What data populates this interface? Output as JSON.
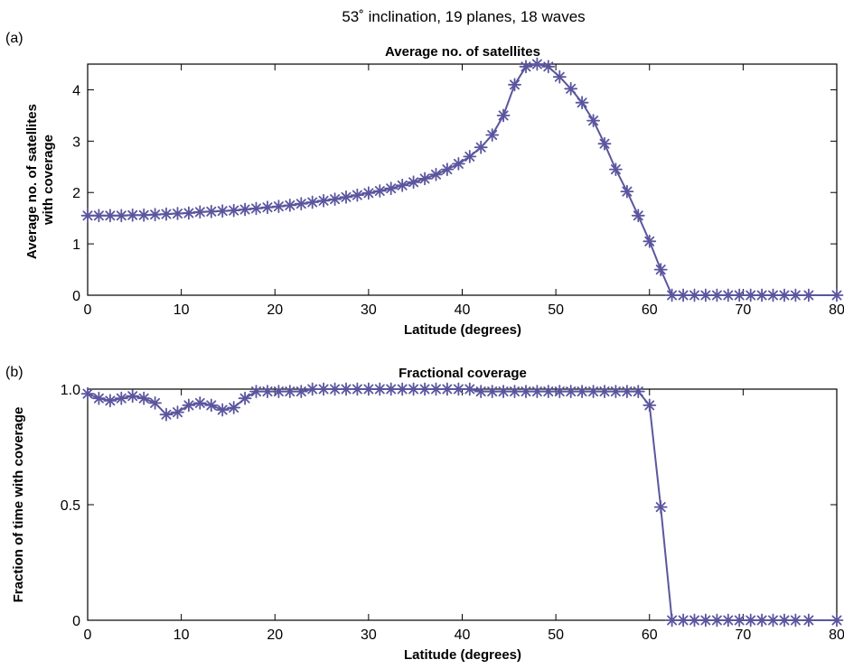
{
  "figure": {
    "title": "53˚ inclination, 19 planes, 18 waves"
  },
  "chart_data": [
    {
      "panel_label": "(a)",
      "type": "line",
      "title": "Average no. of satellites",
      "xlabel": "Latitude (degrees)",
      "ylabel_lines": [
        "Average no. of  satellites",
        "with coverage"
      ],
      "xlim": [
        0,
        80
      ],
      "ylim": [
        0,
        4.5
      ],
      "xticks": [
        0,
        10,
        20,
        30,
        40,
        50,
        60,
        70,
        80
      ],
      "yticks": [
        0,
        1,
        2,
        3,
        4
      ],
      "marker": "asterisk",
      "color": "#5b569e",
      "x": [
        0,
        1.2,
        2.4,
        3.6,
        4.8,
        6.0,
        7.2,
        8.4,
        9.6,
        10.8,
        12.0,
        13.2,
        14.4,
        15.6,
        16.8,
        18.0,
        19.2,
        20.4,
        21.6,
        22.8,
        24.0,
        25.2,
        26.4,
        27.6,
        28.8,
        30.0,
        31.2,
        32.4,
        33.6,
        34.8,
        36.0,
        37.2,
        38.4,
        39.6,
        40.8,
        42.0,
        43.2,
        44.4,
        45.6,
        46.8,
        48.0,
        49.2,
        50.4,
        51.6,
        52.8,
        54.0,
        55.2,
        56.4,
        57.6,
        58.8,
        60.0,
        61.2,
        62.4,
        63.6,
        64.8,
        66.0,
        67.2,
        68.4,
        69.6,
        70.8,
        72.0,
        73.2,
        74.4,
        75.6,
        77.0,
        80.0
      ],
      "y": [
        1.55,
        1.55,
        1.55,
        1.55,
        1.56,
        1.56,
        1.57,
        1.58,
        1.59,
        1.6,
        1.62,
        1.63,
        1.64,
        1.65,
        1.67,
        1.69,
        1.71,
        1.73,
        1.75,
        1.78,
        1.81,
        1.84,
        1.87,
        1.91,
        1.95,
        1.99,
        2.03,
        2.08,
        2.14,
        2.2,
        2.27,
        2.35,
        2.45,
        2.56,
        2.7,
        2.88,
        3.12,
        3.5,
        4.1,
        4.45,
        4.5,
        4.45,
        4.25,
        4.02,
        3.75,
        3.4,
        2.95,
        2.45,
        2.02,
        1.55,
        1.05,
        0.5,
        0.0,
        0.0,
        0.0,
        0.0,
        0.0,
        0.0,
        0.0,
        0.0,
        0.0,
        0.0,
        0.0,
        0.0,
        0.0,
        0.0
      ]
    },
    {
      "panel_label": "(b)",
      "type": "line",
      "title": "Fractional coverage",
      "xlabel": "Latitude (degrees)",
      "ylabel_lines": [
        "Fraction of time with coverage"
      ],
      "xlim": [
        0,
        80
      ],
      "ylim": [
        0,
        1.0
      ],
      "xticks": [
        0,
        10,
        20,
        30,
        40,
        50,
        60,
        70,
        80
      ],
      "yticks": [
        0,
        0.5,
        1.0
      ],
      "ytick_labels": [
        "0",
        "0.5",
        "1.0"
      ],
      "marker": "asterisk",
      "color": "#5b569e",
      "x": [
        0,
        1.2,
        2.4,
        3.6,
        4.8,
        6.0,
        7.2,
        8.4,
        9.6,
        10.8,
        12.0,
        13.2,
        14.4,
        15.6,
        16.8,
        18.0,
        19.2,
        20.4,
        21.6,
        22.8,
        24.0,
        25.2,
        26.4,
        27.6,
        28.8,
        30.0,
        31.2,
        32.4,
        33.6,
        34.8,
        36.0,
        37.2,
        38.4,
        39.6,
        40.8,
        42.0,
        43.2,
        44.4,
        45.6,
        46.8,
        48.0,
        49.2,
        50.4,
        51.6,
        52.8,
        54.0,
        55.2,
        56.4,
        57.6,
        58.8,
        60.0,
        61.2,
        62.4,
        63.6,
        64.8,
        66.0,
        67.2,
        68.4,
        69.6,
        70.8,
        72.0,
        73.2,
        74.4,
        75.6,
        77.0,
        80.0
      ],
      "y": [
        0.98,
        0.96,
        0.95,
        0.96,
        0.97,
        0.96,
        0.94,
        0.89,
        0.9,
        0.93,
        0.94,
        0.93,
        0.91,
        0.92,
        0.96,
        0.99,
        0.99,
        0.99,
        0.99,
        0.99,
        1.0,
        1.0,
        1.0,
        1.0,
        1.0,
        1.0,
        1.0,
        1.0,
        1.0,
        1.0,
        1.0,
        1.0,
        1.0,
        1.0,
        1.0,
        0.99,
        0.99,
        0.99,
        0.99,
        0.99,
        0.99,
        0.99,
        0.99,
        0.99,
        0.99,
        0.99,
        0.99,
        0.99,
        0.99,
        0.99,
        0.93,
        0.49,
        0.0,
        0.0,
        0.0,
        0.0,
        0.0,
        0.0,
        0.0,
        0.0,
        0.0,
        0.0,
        0.0,
        0.0,
        0.0,
        0.0
      ]
    }
  ]
}
